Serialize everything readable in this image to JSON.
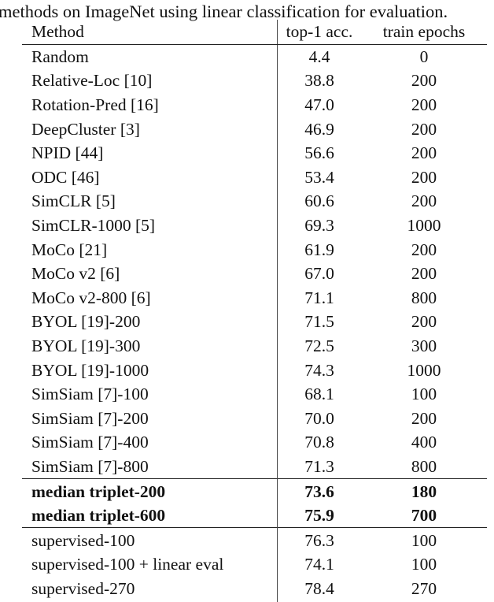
{
  "caption": "methods on ImageNet using linear classification for evaluation.",
  "table": {
    "headers": [
      "Method",
      "top-1 acc.",
      "train epochs"
    ],
    "groups": [
      {
        "bold": false,
        "rows": [
          [
            "Random",
            "4.4",
            "0"
          ],
          [
            "Relative-Loc [10]",
            "38.8",
            "200"
          ],
          [
            "Rotation-Pred [16]",
            "47.0",
            "200"
          ],
          [
            "DeepCluster [3]",
            "46.9",
            "200"
          ],
          [
            "NPID [44]",
            "56.6",
            "200"
          ],
          [
            "ODC [46]",
            "53.4",
            "200"
          ],
          [
            "SimCLR [5]",
            "60.6",
            "200"
          ],
          [
            "SimCLR-1000 [5]",
            "69.3",
            "1000"
          ],
          [
            "MoCo [21]",
            "61.9",
            "200"
          ],
          [
            "MoCo v2 [6]",
            "67.0",
            "200"
          ],
          [
            "MoCo v2-800 [6]",
            "71.1",
            "800"
          ],
          [
            "BYOL [19]-200",
            "71.5",
            "200"
          ],
          [
            "BYOL [19]-300",
            "72.5",
            "300"
          ],
          [
            "BYOL [19]-1000",
            "74.3",
            "1000"
          ],
          [
            "SimSiam [7]-100",
            "68.1",
            "100"
          ],
          [
            "SimSiam [7]-200",
            "70.0",
            "200"
          ],
          [
            "SimSiam [7]-400",
            "70.8",
            "400"
          ],
          [
            "SimSiam [7]-800",
            "71.3",
            "800"
          ]
        ]
      },
      {
        "bold": true,
        "rows": [
          [
            "median triplet-200",
            "73.6",
            "180"
          ],
          [
            "median triplet-600",
            "75.9",
            "700"
          ]
        ]
      },
      {
        "bold": false,
        "rows": [
          [
            "supervised-100",
            "76.3",
            "100"
          ],
          [
            "supervised-100 + linear eval",
            "74.1",
            "100"
          ],
          [
            "supervised-270",
            "78.4",
            "270"
          ]
        ]
      }
    ]
  }
}
